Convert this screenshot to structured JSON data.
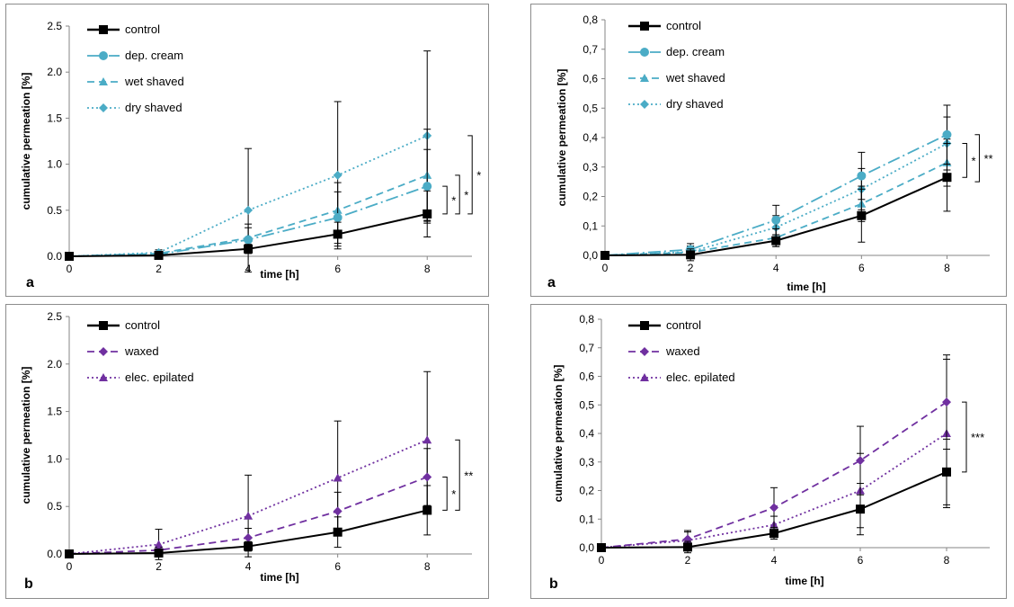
{
  "colors": {
    "control": "#000000",
    "teal": "#4bacc6",
    "purple": "#7030a0",
    "axis": "#868686",
    "text": "#000000"
  },
  "chart_data": [
    {
      "id": "top-left",
      "type": "line",
      "panel_label": "a",
      "xlabel": "time [h]",
      "ylabel": "cumulative permeation [%]",
      "x": [
        0,
        2,
        4,
        6,
        8
      ],
      "xlim": [
        0,
        9
      ],
      "ylim": [
        0,
        2.5
      ],
      "yticks": [
        0,
        0.5,
        1.0,
        1.5,
        2.0,
        2.5
      ],
      "ytick_labels": [
        "0.0",
        "0.5",
        "1.0",
        "1.5",
        "2.0",
        "2.5"
      ],
      "xtick_labels": [
        "0",
        "2",
        "4",
        "6",
        "8"
      ],
      "series": [
        {
          "name": "control",
          "color": "control",
          "dash": "",
          "marker": "square",
          "values": [
            0,
            0.01,
            0.08,
            0.24,
            0.46
          ],
          "errors": [
            0,
            0.01,
            0.05,
            0.13,
            0.25
          ]
        },
        {
          "name": "dep. cream",
          "color": "teal",
          "dash": "14,4,2,4",
          "marker": "circle",
          "values": [
            0,
            0.02,
            0.18,
            0.42,
            0.76
          ],
          "errors": [
            0,
            0.02,
            0.13,
            0.28,
            0.4
          ]
        },
        {
          "name": "wet shaved",
          "color": "teal",
          "dash": "8,5",
          "marker": "triangle",
          "values": [
            0,
            0.03,
            0.2,
            0.5,
            0.88
          ],
          "errors": [
            0,
            0.02,
            0.15,
            0.3,
            0.5
          ]
        },
        {
          "name": "dry shaved",
          "color": "teal",
          "dash": "2,3",
          "marker": "diamond",
          "values": [
            0,
            0.04,
            0.5,
            0.88,
            1.31
          ],
          "errors": [
            0,
            0.03,
            0.67,
            0.8,
            0.92
          ]
        }
      ],
      "brackets": [
        {
          "from": 0.46,
          "to": 0.76,
          "label": "*",
          "level": 0
        },
        {
          "from": 0.46,
          "to": 0.88,
          "label": "*",
          "level": 1
        },
        {
          "from": 0.46,
          "to": 1.31,
          "label": "*",
          "level": 2
        }
      ]
    },
    {
      "id": "top-right",
      "type": "line",
      "panel_label": "a",
      "xlabel": "time [h]",
      "ylabel": "cumulative permeation [%]",
      "x": [
        0,
        2,
        4,
        6,
        8
      ],
      "xlim": [
        0,
        9
      ],
      "ylim": [
        0,
        0.8
      ],
      "yticks": [
        0,
        0.1,
        0.2,
        0.3,
        0.4,
        0.5,
        0.6,
        0.7,
        0.8
      ],
      "ytick_labels": [
        "0,0",
        "0,1",
        "0,2",
        "0,3",
        "0,4",
        "0,5",
        "0,6",
        "0,7",
        "0,8"
      ],
      "xtick_labels": [
        "0",
        "2",
        "4",
        "6",
        "8"
      ],
      "series": [
        {
          "name": "control",
          "color": "control",
          "dash": "",
          "marker": "square",
          "values": [
            0,
            0.002,
            0.05,
            0.135,
            0.265
          ],
          "errors": [
            0,
            0.02,
            0.02,
            0.09,
            0.115
          ]
        },
        {
          "name": "dep. cream",
          "color": "teal",
          "dash": "14,4,2,4",
          "marker": "circle",
          "values": [
            0,
            0.02,
            0.12,
            0.27,
            0.41
          ],
          "errors": [
            0,
            0.02,
            0.05,
            0.08,
            0.1
          ]
        },
        {
          "name": "wet shaved",
          "color": "teal",
          "dash": "8,5",
          "marker": "triangle",
          "values": [
            0,
            0.01,
            0.06,
            0.175,
            0.315
          ],
          "errors": [
            0,
            0.02,
            0.03,
            0.06,
            0.08
          ]
        },
        {
          "name": "dry shaved",
          "color": "teal",
          "dash": "2,3",
          "marker": "diamond",
          "values": [
            0,
            0.012,
            0.095,
            0.225,
            0.38
          ],
          "errors": [
            0,
            0.02,
            0.04,
            0.07,
            0.09
          ]
        }
      ],
      "brackets": [
        {
          "from": 0.265,
          "to": 0.38,
          "label": "*",
          "level": 0
        },
        {
          "from": 0.25,
          "to": 0.41,
          "label": "**",
          "level": 1
        }
      ]
    },
    {
      "id": "bottom-left",
      "type": "line",
      "panel_label": "b",
      "xlabel": "time [h]",
      "ylabel": "cumulative permeation [%]",
      "x": [
        0,
        2,
        4,
        6,
        8
      ],
      "xlim": [
        0,
        9
      ],
      "ylim": [
        0,
        2.5
      ],
      "yticks": [
        0,
        0.5,
        1.0,
        1.5,
        2.0,
        2.5
      ],
      "ytick_labels": [
        "0.0",
        "0.5",
        "1.0",
        "1.5",
        "2.0",
        "2.5"
      ],
      "xtick_labels": [
        "0",
        "2",
        "4",
        "6",
        "8"
      ],
      "series": [
        {
          "name": "control",
          "color": "control",
          "dash": "",
          "marker": "square",
          "values": [
            0,
            0.01,
            0.08,
            0.23,
            0.46
          ],
          "errors": [
            0,
            0.01,
            0.05,
            0.16,
            0.26
          ]
        },
        {
          "name": "waxed",
          "color": "purple",
          "dash": "8,5",
          "marker": "diamond",
          "values": [
            0,
            0.04,
            0.17,
            0.45,
            0.81
          ],
          "errors": [
            0,
            0.03,
            0.1,
            0.2,
            0.3
          ]
        },
        {
          "name": "elec. epilated",
          "color": "purple",
          "dash": "2,3",
          "marker": "triangle",
          "values": [
            0,
            0.1,
            0.4,
            0.8,
            1.2
          ],
          "errors": [
            0,
            0.16,
            0.43,
            0.6,
            0.72
          ]
        }
      ],
      "brackets": [
        {
          "from": 0.46,
          "to": 0.81,
          "label": "*",
          "level": 0
        },
        {
          "from": 0.46,
          "to": 1.2,
          "label": "**",
          "level": 1
        }
      ]
    },
    {
      "id": "bottom-right",
      "type": "line",
      "panel_label": "b",
      "xlabel": "time [h]",
      "ylabel": "cumulative permeation [%]",
      "x": [
        0,
        2,
        4,
        6,
        8
      ],
      "xlim": [
        0,
        9
      ],
      "ylim": [
        0,
        0.8
      ],
      "yticks": [
        0,
        0.1,
        0.2,
        0.3,
        0.4,
        0.5,
        0.6,
        0.7,
        0.8
      ],
      "ytick_labels": [
        "0,0",
        "0,1",
        "0,2",
        "0,3",
        "0,4",
        "0,5",
        "0,6",
        "0,7",
        "0,8"
      ],
      "xtick_labels": [
        "0",
        "2",
        "4",
        "6",
        "8"
      ],
      "series": [
        {
          "name": "control",
          "color": "control",
          "dash": "",
          "marker": "square",
          "values": [
            0,
            0.002,
            0.05,
            0.135,
            0.265
          ],
          "errors": [
            0,
            0.02,
            0.02,
            0.09,
            0.115
          ]
        },
        {
          "name": "waxed",
          "color": "purple",
          "dash": "8,5",
          "marker": "diamond",
          "values": [
            0,
            0.03,
            0.14,
            0.305,
            0.51
          ],
          "errors": [
            0,
            0.03,
            0.07,
            0.12,
            0.165
          ]
        },
        {
          "name": "elec. epilated",
          "color": "purple",
          "dash": "2,3",
          "marker": "triangle",
          "values": [
            0,
            0.025,
            0.08,
            0.2,
            0.4
          ],
          "errors": [
            0,
            0.03,
            0.03,
            0.13,
            0.26
          ]
        }
      ],
      "brackets": [
        {
          "from": 0.265,
          "to": 0.51,
          "label": "***",
          "level": 0
        }
      ]
    }
  ]
}
